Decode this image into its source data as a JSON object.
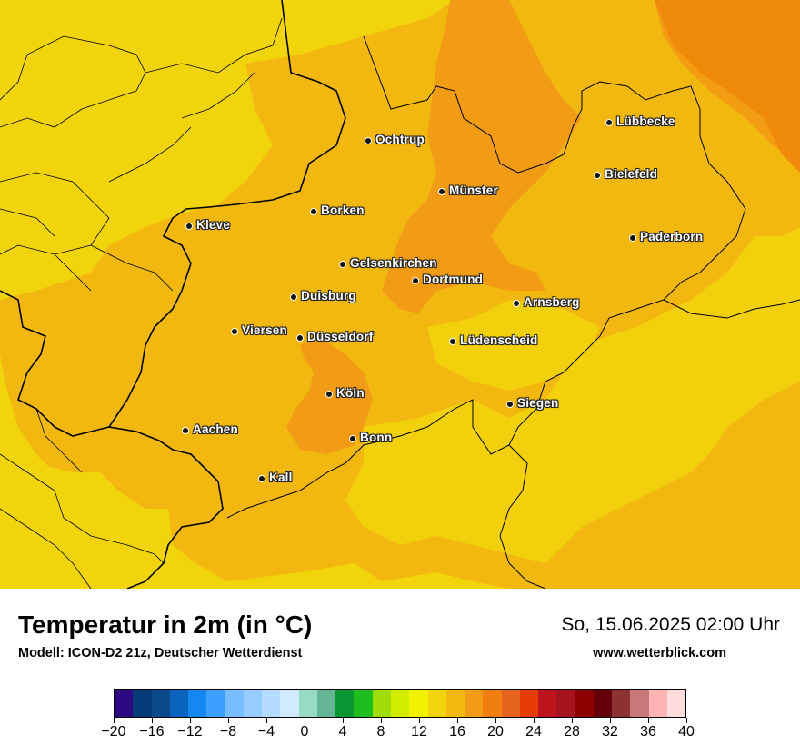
{
  "map": {
    "cities": [
      {
        "name": "Lübbecke",
        "id": "luebbecke"
      },
      {
        "name": "Ochtrup",
        "id": "ochtrup"
      },
      {
        "name": "Bielefeld",
        "id": "bielefeld"
      },
      {
        "name": "Münster",
        "id": "muenster"
      },
      {
        "name": "Borken",
        "id": "borken"
      },
      {
        "name": "Kleve",
        "id": "kleve"
      },
      {
        "name": "Paderborn",
        "id": "paderborn"
      },
      {
        "name": "Gelsenkirchen",
        "id": "gelsenkirchen"
      },
      {
        "name": "Dortmund",
        "id": "dortmund"
      },
      {
        "name": "Duisburg",
        "id": "duisburg"
      },
      {
        "name": "Arnsberg",
        "id": "arnsberg"
      },
      {
        "name": "Viersen",
        "id": "viersen"
      },
      {
        "name": "Düsseldorf",
        "id": "duesseldorf"
      },
      {
        "name": "Lüdenscheid",
        "id": "luedenscheid"
      },
      {
        "name": "Köln",
        "id": "koeln"
      },
      {
        "name": "Siegen",
        "id": "siegen"
      },
      {
        "name": "Aachen",
        "id": "aachen"
      },
      {
        "name": "Bonn",
        "id": "bonn"
      },
      {
        "name": "Kall",
        "id": "kall"
      }
    ]
  },
  "footer": {
    "title": "Temperatur in 2m (in °C)",
    "model": "Modell: ICON-D2 21z, Deutscher Wetterdienst",
    "datetime": "So, 15.06.2025 02:00 Uhr",
    "website": "www.wetterblick.com"
  },
  "legend": {
    "colors": [
      "#2e0a82",
      "#053c78",
      "#0a4a8a",
      "#0a64be",
      "#1488f0",
      "#3ca0ff",
      "#78beff",
      "#96ccff",
      "#b4dcff",
      "#d2eaff",
      "#96dcc4",
      "#64b496",
      "#0a9632",
      "#1ebe1e",
      "#a0dc0a",
      "#d2ec00",
      "#f2f200",
      "#f2d40c",
      "#f2b80f",
      "#f29b14",
      "#f07e10",
      "#e6641e",
      "#e63c0a",
      "#be141e",
      "#a5141e",
      "#8c0000",
      "#64000a",
      "#8c3232",
      "#c87878",
      "#ffb4b4",
      "#ffdcdc"
    ],
    "ticks": [
      "−20",
      "−16",
      "−12",
      "−8",
      "−4",
      "0",
      "4",
      "8",
      "12",
      "16",
      "20",
      "24",
      "28",
      "32",
      "36",
      "40"
    ],
    "min": -20,
    "max": 40,
    "step": 2
  },
  "colors": {
    "temp_14_16": "#f2d40c",
    "temp_16_18": "#f2b80f",
    "temp_18_20": "#f29b14",
    "temp_20_22": "#f07e10"
  }
}
